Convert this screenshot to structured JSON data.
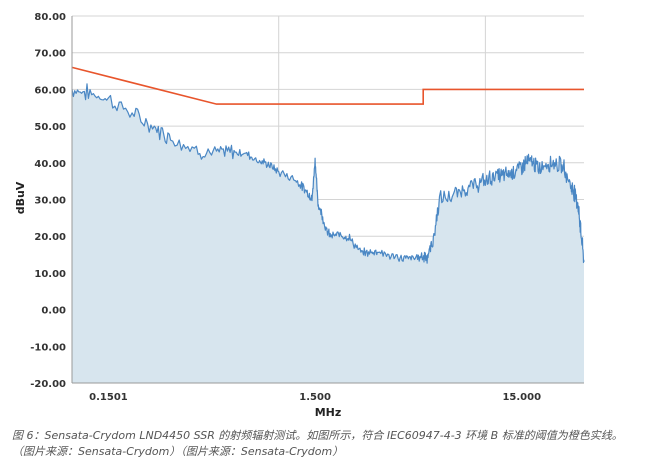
{
  "chart_data": {
    "type": "area",
    "xscale": "log",
    "xlim": [
      0.1,
      30
    ],
    "ylim": [
      -20,
      80
    ],
    "xlabel": "MHz",
    "ylabel": "dBuV",
    "yticks": [
      "-20.00",
      "-10.00",
      "0.00",
      "10.00",
      "20.00",
      "30.00",
      "40.00",
      "50.00",
      "60.00",
      "70.00",
      "80.00"
    ],
    "xticks": [
      {
        "value": 0.1501,
        "label": "0.1501"
      },
      {
        "value": 1.5,
        "label": "1.500"
      },
      {
        "value": 15,
        "label": "15.000"
      }
    ],
    "grid": true,
    "series": [
      {
        "kind": "area",
        "color": "#4a87c4",
        "fill": "#d7e5ee",
        "x": [
          0.1,
          0.12,
          0.15,
          0.2,
          0.25,
          0.3,
          0.4,
          0.5,
          0.6,
          0.7,
          0.8,
          0.9,
          1.0,
          1.2,
          1.3,
          1.4,
          1.45,
          1.5,
          1.55,
          1.6,
          1.7,
          1.8,
          2.0,
          2.2,
          2.5,
          2.8,
          3.0,
          3.5,
          4.0,
          4.5,
          5.0,
          5.3,
          5.6,
          6.0,
          7.0,
          8.0,
          9.0,
          10,
          11,
          12,
          13,
          14,
          15,
          16,
          17,
          18,
          20,
          22,
          24,
          26,
          27,
          28,
          28.5,
          29,
          30
        ],
        "values": [
          60,
          59,
          57.5,
          53,
          49.5,
          47,
          43.5,
          42.5,
          43,
          42.5,
          40.5,
          39.5,
          37.5,
          35.5,
          33.5,
          31.5,
          30,
          41,
          28.5,
          27,
          21.5,
          20,
          20.5,
          19.5,
          15.5,
          15.5,
          16,
          14.5,
          14,
          14,
          14.5,
          15,
          19,
          30,
          31,
          33,
          34,
          35,
          36.5,
          36.5,
          37,
          38,
          39,
          40.5,
          40,
          38.5,
          40,
          40,
          38.5,
          33.5,
          32,
          29,
          25,
          21,
          13
        ]
      },
      {
        "kind": "line",
        "color": "#e8552c",
        "x": [
          0.1,
          0.5,
          5.0,
          5.0,
          30
        ],
        "values": [
          66,
          56,
          56,
          60,
          60
        ]
      }
    ]
  },
  "caption": "图 6：Sensata-Crydom LND4450 SSR 的射频辐射测试。如图所示，符合 IEC60947-4-3 环境 B 标准的阈值为橙色实线。（图片来源：Sensata-Crydom）（图片来源：Sensata-Crydom）"
}
